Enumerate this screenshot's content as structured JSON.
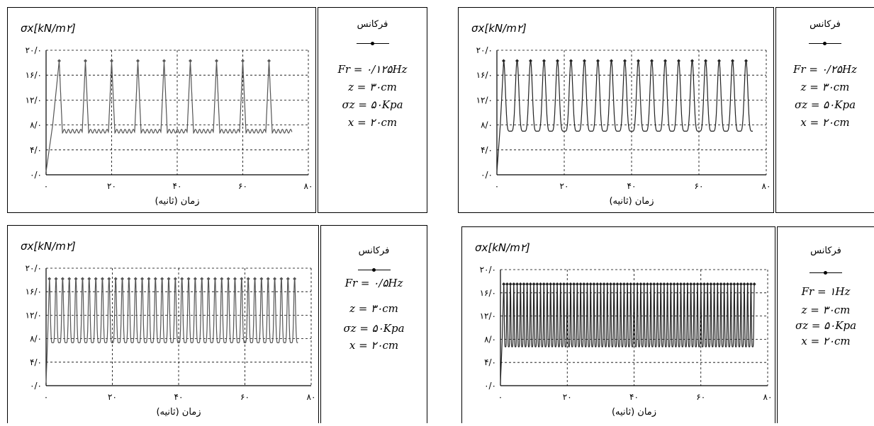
{
  "charts": [
    {
      "ylabel": "σx[kN/m۲]",
      "xlabel": "زمان (ثانیه)",
      "legend_title": "فرکانس",
      "legend_lines": [
        "Fr = ۰/۱۲۵Hz",
        "z = ۳۰cm",
        "σz = ۵۰Kpa",
        "x = ۲۰cm"
      ]
    },
    {
      "ylabel": "σx[kN/m۲]",
      "xlabel": "زمان (ثانیه)",
      "legend_title": "فرکانس",
      "legend_lines": [
        "Fr = ۰/۲۵Hz",
        "z = ۳۰cm",
        "σz = ۵۰Kpa",
        "x = ۲۰cm"
      ]
    },
    {
      "ylabel": "σx[kN/m۲]",
      "xlabel": "زمان (ثانیه)",
      "legend_title": "فرکانس",
      "legend_lines": [
        "Fr = ۰/۵Hz",
        "z = ۳۰cm",
        "σz = ۵۰Kpa",
        "x = ۲۰cm"
      ]
    },
    {
      "ylabel": "σx[kN/m۲]",
      "xlabel": "زمان (ثانیه)",
      "legend_title": "فرکانس",
      "legend_lines": [
        "Fr = ۱Hz",
        "z = ۳۰cm",
        "σz = ۵۰Kpa",
        "x = ۲۰cm"
      ]
    }
  ],
  "chart_data": [
    {
      "type": "line",
      "frequency_hz": 0.125,
      "xlim": [
        0,
        80
      ],
      "ylim": [
        0,
        20
      ],
      "xticks": [
        "۰",
        "۲۰",
        "۴۰",
        "۶۰",
        "۸۰"
      ],
      "yticks": [
        "۰/۰",
        "۴/۰",
        "۸/۰",
        "۱۲/۰",
        "۱۶/۰",
        "۲۰/۰"
      ],
      "tick_values_x": [
        0,
        20,
        40,
        60,
        80
      ],
      "tick_values_y": [
        0,
        4,
        8,
        12,
        16,
        20
      ],
      "t_end": 75,
      "baseline": 7.0,
      "peak": 18.3,
      "initial_peak_time": 4,
      "series_color": "#555555"
    },
    {
      "type": "line",
      "frequency_hz": 0.25,
      "xlim": [
        0,
        80
      ],
      "ylim": [
        0,
        20
      ],
      "xticks": [
        "۰",
        "۲۰",
        "۴۰",
        "۶۰",
        "۸۰"
      ],
      "yticks": [
        "۰/۰",
        "۴/۰",
        "۸/۰",
        "۱۲/۰",
        "۱۶/۰",
        "۲۰/۰"
      ],
      "tick_values_x": [
        0,
        20,
        40,
        60,
        80
      ],
      "tick_values_y": [
        0,
        4,
        8,
        12,
        16,
        20
      ],
      "t_end": 76,
      "baseline": 7.0,
      "peak": 18.3,
      "initial_peak_time": 2,
      "series_color": "#222222"
    },
    {
      "type": "line",
      "frequency_hz": 0.5,
      "xlim": [
        0,
        80
      ],
      "ylim": [
        0,
        20
      ],
      "xticks": [
        "۰",
        "۲۰",
        "۴۰",
        "۶۰",
        "۸۰"
      ],
      "yticks": [
        "۰/۰",
        "۴/۰",
        "۸/۰",
        "۱۲/۰",
        "۱۶/۰",
        "۲۰/۰"
      ],
      "tick_values_x": [
        0,
        20,
        40,
        60,
        80
      ],
      "tick_values_y": [
        0,
        4,
        8,
        12,
        16,
        20
      ],
      "t_end": 76,
      "baseline": 7.3,
      "peak": 18.2,
      "initial_peak_time": 1,
      "series_color": "#555555"
    },
    {
      "type": "line",
      "frequency_hz": 1,
      "xlim": [
        0,
        80
      ],
      "ylim": [
        0,
        20
      ],
      "xticks": [
        "۰",
        "۲۰",
        "۴۰",
        "۶۰",
        "۸۰"
      ],
      "yticks": [
        "۰/۰",
        "۴/۰",
        "۸/۰",
        "۱۲/۰",
        "۱۶/۰",
        "۲۰/۰"
      ],
      "tick_values_x": [
        0,
        20,
        40,
        60,
        80
      ],
      "tick_values_y": [
        0,
        4,
        8,
        12,
        16,
        20
      ],
      "t_end": 76,
      "baseline": 6.7,
      "peak": 17.5,
      "initial_peak_time": 1,
      "series_color": "#222222"
    }
  ]
}
